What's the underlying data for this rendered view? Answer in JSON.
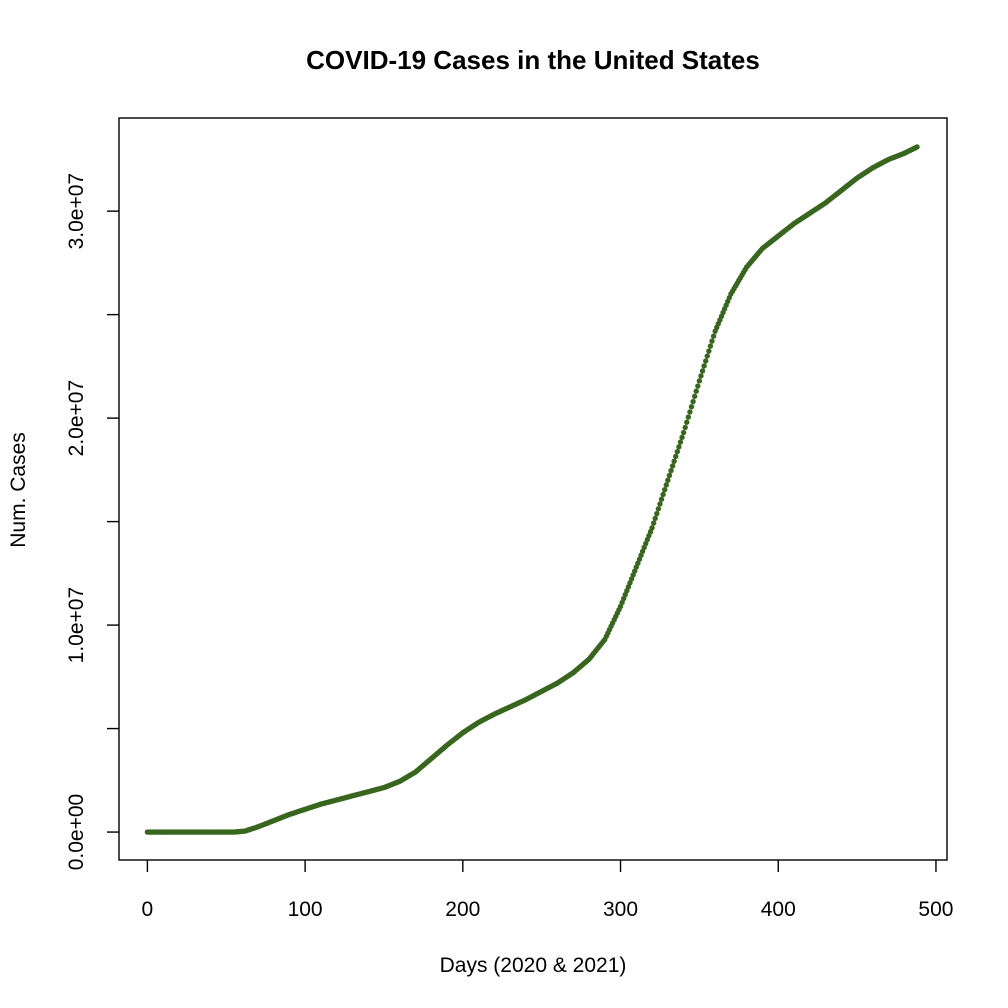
{
  "chart_data": {
    "type": "scatter",
    "title": "COVID-19 Cases in the United States",
    "xlabel": "Days (2020 & 2021)",
    "ylabel": "Num. Cases",
    "xlim": [
      -18,
      507
    ],
    "ylim": [
      -1350000,
      34500000
    ],
    "xticks": [
      0,
      100,
      200,
      300,
      400,
      500
    ],
    "xtick_labels": [
      "0",
      "100",
      "200",
      "300",
      "400",
      "500"
    ],
    "yticks": [
      0,
      5000000,
      10000000,
      15000000,
      20000000,
      25000000,
      30000000
    ],
    "ytick_labels": [
      "0.0e+00",
      "",
      "1.0e+07",
      "",
      "2.0e+07",
      "",
      "3.0e+07"
    ],
    "grid": false,
    "legend": "none",
    "point_color": "#38661e",
    "series": [
      {
        "x": [
          0,
          55,
          62,
          70,
          80,
          90,
          100,
          110,
          120,
          130,
          140,
          150,
          160,
          170,
          180,
          190,
          200,
          210,
          220,
          230,
          240,
          250,
          260,
          270,
          280,
          290,
          300,
          310,
          320,
          330,
          340,
          350,
          360,
          370,
          380,
          390,
          400,
          410,
          420,
          430,
          440,
          450,
          460,
          470,
          480,
          488
        ],
        "y": [
          0,
          0,
          50000,
          250000,
          550000,
          850000,
          1100000,
          1350000,
          1550000,
          1750000,
          1950000,
          2150000,
          2450000,
          2900000,
          3550000,
          4200000,
          4800000,
          5300000,
          5700000,
          6050000,
          6400000,
          6800000,
          7200000,
          7700000,
          8350000,
          9300000,
          10900000,
          12800000,
          14700000,
          17000000,
          19300000,
          21800000,
          24200000,
          26000000,
          27300000,
          28200000,
          28800000,
          29400000,
          29900000,
          30400000,
          31000000,
          31600000,
          32100000,
          32500000,
          32800000,
          33100000
        ]
      }
    ]
  }
}
